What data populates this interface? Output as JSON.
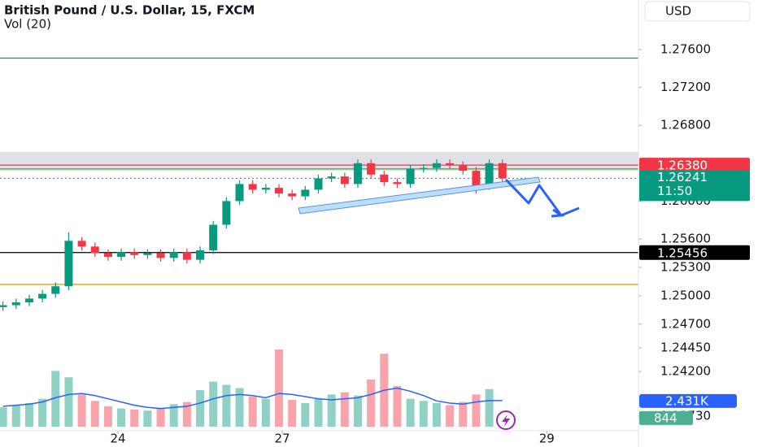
{
  "chart_data": {
    "type": "candlestick",
    "title": "British Pound / U.S. Dollar, 15, FXCM",
    "subtitle": "Vol (20)",
    "currency": "USD",
    "up_color": "#089981",
    "down_color": "#f23645",
    "x": [
      -0.7,
      -0.62,
      -0.54,
      -0.46,
      -0.38,
      -0.3,
      -0.22,
      -0.14,
      -0.06,
      0.02,
      0.1,
      0.18,
      0.26,
      0.34,
      0.42,
      0.5,
      0.58,
      0.66,
      0.74,
      0.82,
      0.9,
      0.98,
      1.06,
      1.14,
      1.22,
      1.3,
      1.38,
      1.46,
      1.54,
      1.62,
      1.7,
      1.78,
      1.86,
      1.94,
      2.02,
      2.1,
      2.18,
      2.26,
      2.34
    ],
    "open": [
      1.2488,
      1.249,
      1.2493,
      1.2497,
      1.2502,
      1.251,
      1.2558,
      1.2552,
      1.2545,
      1.2541,
      1.2546,
      1.2543,
      1.2545,
      1.254,
      1.2546,
      1.2538,
      1.2548,
      1.2575,
      1.26,
      1.2618,
      1.2612,
      1.2614,
      1.2608,
      1.2605,
      1.2612,
      1.2624,
      1.2626,
      1.2618,
      1.264,
      1.2628,
      1.262,
      1.2618,
      1.2634,
      1.2635,
      1.264,
      1.2638,
      1.2632,
      1.2616,
      1.264
    ],
    "high": [
      1.2494,
      1.2497,
      1.2501,
      1.2506,
      1.2514,
      1.2567,
      1.2562,
      1.2556,
      1.2549,
      1.255,
      1.255,
      1.2549,
      1.2549,
      1.255,
      1.255,
      1.2552,
      1.2579,
      1.2604,
      1.2622,
      1.2622,
      1.2618,
      1.2618,
      1.2612,
      1.2616,
      1.2628,
      1.263,
      1.263,
      1.2644,
      1.2644,
      1.2632,
      1.2624,
      1.2638,
      1.2639,
      1.2644,
      1.2644,
      1.2642,
      1.2636,
      1.2644,
      1.2644
    ],
    "low": [
      1.2484,
      1.2486,
      1.2489,
      1.2493,
      1.2498,
      1.2506,
      1.2548,
      1.2541,
      1.2537,
      1.2537,
      1.2539,
      1.2539,
      1.2536,
      1.2536,
      1.2534,
      1.2534,
      1.2544,
      1.2571,
      1.2596,
      1.2608,
      1.2608,
      1.2604,
      1.2601,
      1.2601,
      1.2608,
      1.262,
      1.2614,
      1.2614,
      1.2624,
      1.2616,
      1.2614,
      1.2614,
      1.263,
      1.2631,
      1.2634,
      1.2628,
      1.2608,
      1.2612,
      1.262
    ],
    "close": [
      1.249,
      1.2493,
      1.2497,
      1.2502,
      1.251,
      1.2558,
      1.2552,
      1.2545,
      1.2541,
      1.2546,
      1.2543,
      1.2545,
      1.254,
      1.2546,
      1.2538,
      1.2548,
      1.2575,
      1.26,
      1.2618,
      1.2612,
      1.2614,
      1.2608,
      1.2605,
      1.2612,
      1.2624,
      1.2626,
      1.2618,
      1.264,
      1.2628,
      1.262,
      1.2618,
      1.2634,
      1.2635,
      1.264,
      1.2638,
      1.2632,
      1.2616,
      1.264,
      1.2624
    ],
    "xlim": [
      -0.718,
      3.168
    ],
    "xticks": [
      {
        "value": 0,
        "label": "24"
      },
      {
        "value": 1,
        "label": "27"
      },
      {
        "value": 2.61,
        "label": "29"
      }
    ],
    "ylim": [
      1.23574,
      1.28124
    ],
    "yticks": [
      {
        "value": 1.276,
        "label": "1.27600"
      },
      {
        "value": 1.272,
        "label": "1.27200"
      },
      {
        "value": 1.268,
        "label": "1.26800"
      },
      {
        "value": 1.26,
        "label": "1.26000"
      },
      {
        "value": 1.256,
        "label": "1.25600"
      },
      {
        "value": 1.253,
        "label": "1.25300"
      },
      {
        "value": 1.25,
        "label": "1.25000"
      },
      {
        "value": 1.247,
        "label": "1.24700"
      },
      {
        "value": 1.2445,
        "label": "1.24450"
      },
      {
        "value": 1.242,
        "label": "1.24200"
      },
      {
        "value": 1.2373,
        "label": "1.23730"
      }
    ],
    "zone": [
      1.2632,
      1.2652
    ],
    "price_lines": [
      {
        "value": 1.2751,
        "color": "#089981"
      },
      {
        "value": 1.25456,
        "label": "1.25456",
        "color": "#000000"
      },
      {
        "value": 1.2512,
        "color": "#f59d00"
      },
      {
        "value": 1.2634,
        "color": "#4caf50"
      },
      {
        "value": 1.2638,
        "label": "1.26380",
        "color": "#f23645"
      }
    ],
    "last_price": {
      "value": 1.26241,
      "label": "1.26241",
      "countdown": "11:50",
      "color": "#089981"
    },
    "volume": {
      "ylim": [
        0,
        10000
      ],
      "values": [
        1800,
        2000,
        2200,
        2600,
        5200,
        4600,
        3000,
        2400,
        1900,
        1700,
        1600,
        1500,
        1700,
        2100,
        2300,
        3400,
        4200,
        3900,
        3600,
        2800,
        2600,
        7200,
        2500,
        2200,
        2600,
        3000,
        3200,
        2900,
        4400,
        6800,
        3800,
        2600,
        2400,
        2200,
        2000,
        2300,
        3000,
        3500,
        844
      ],
      "ma": [
        1900,
        2000,
        2100,
        2300,
        2700,
        3000,
        3100,
        2900,
        2600,
        2300,
        2000,
        1800,
        1700,
        1800,
        1900,
        2200,
        2600,
        2900,
        3000,
        2900,
        2700,
        3100,
        3000,
        2800,
        2600,
        2500,
        2600,
        2700,
        3000,
        3400,
        3600,
        3300,
        2900,
        2400,
        2200,
        2100,
        2300,
        2431,
        2431
      ],
      "ma_color": "#2962ff",
      "ma_label": {
        "value": 2431,
        "label": "2.431K"
      }
    }
  }
}
